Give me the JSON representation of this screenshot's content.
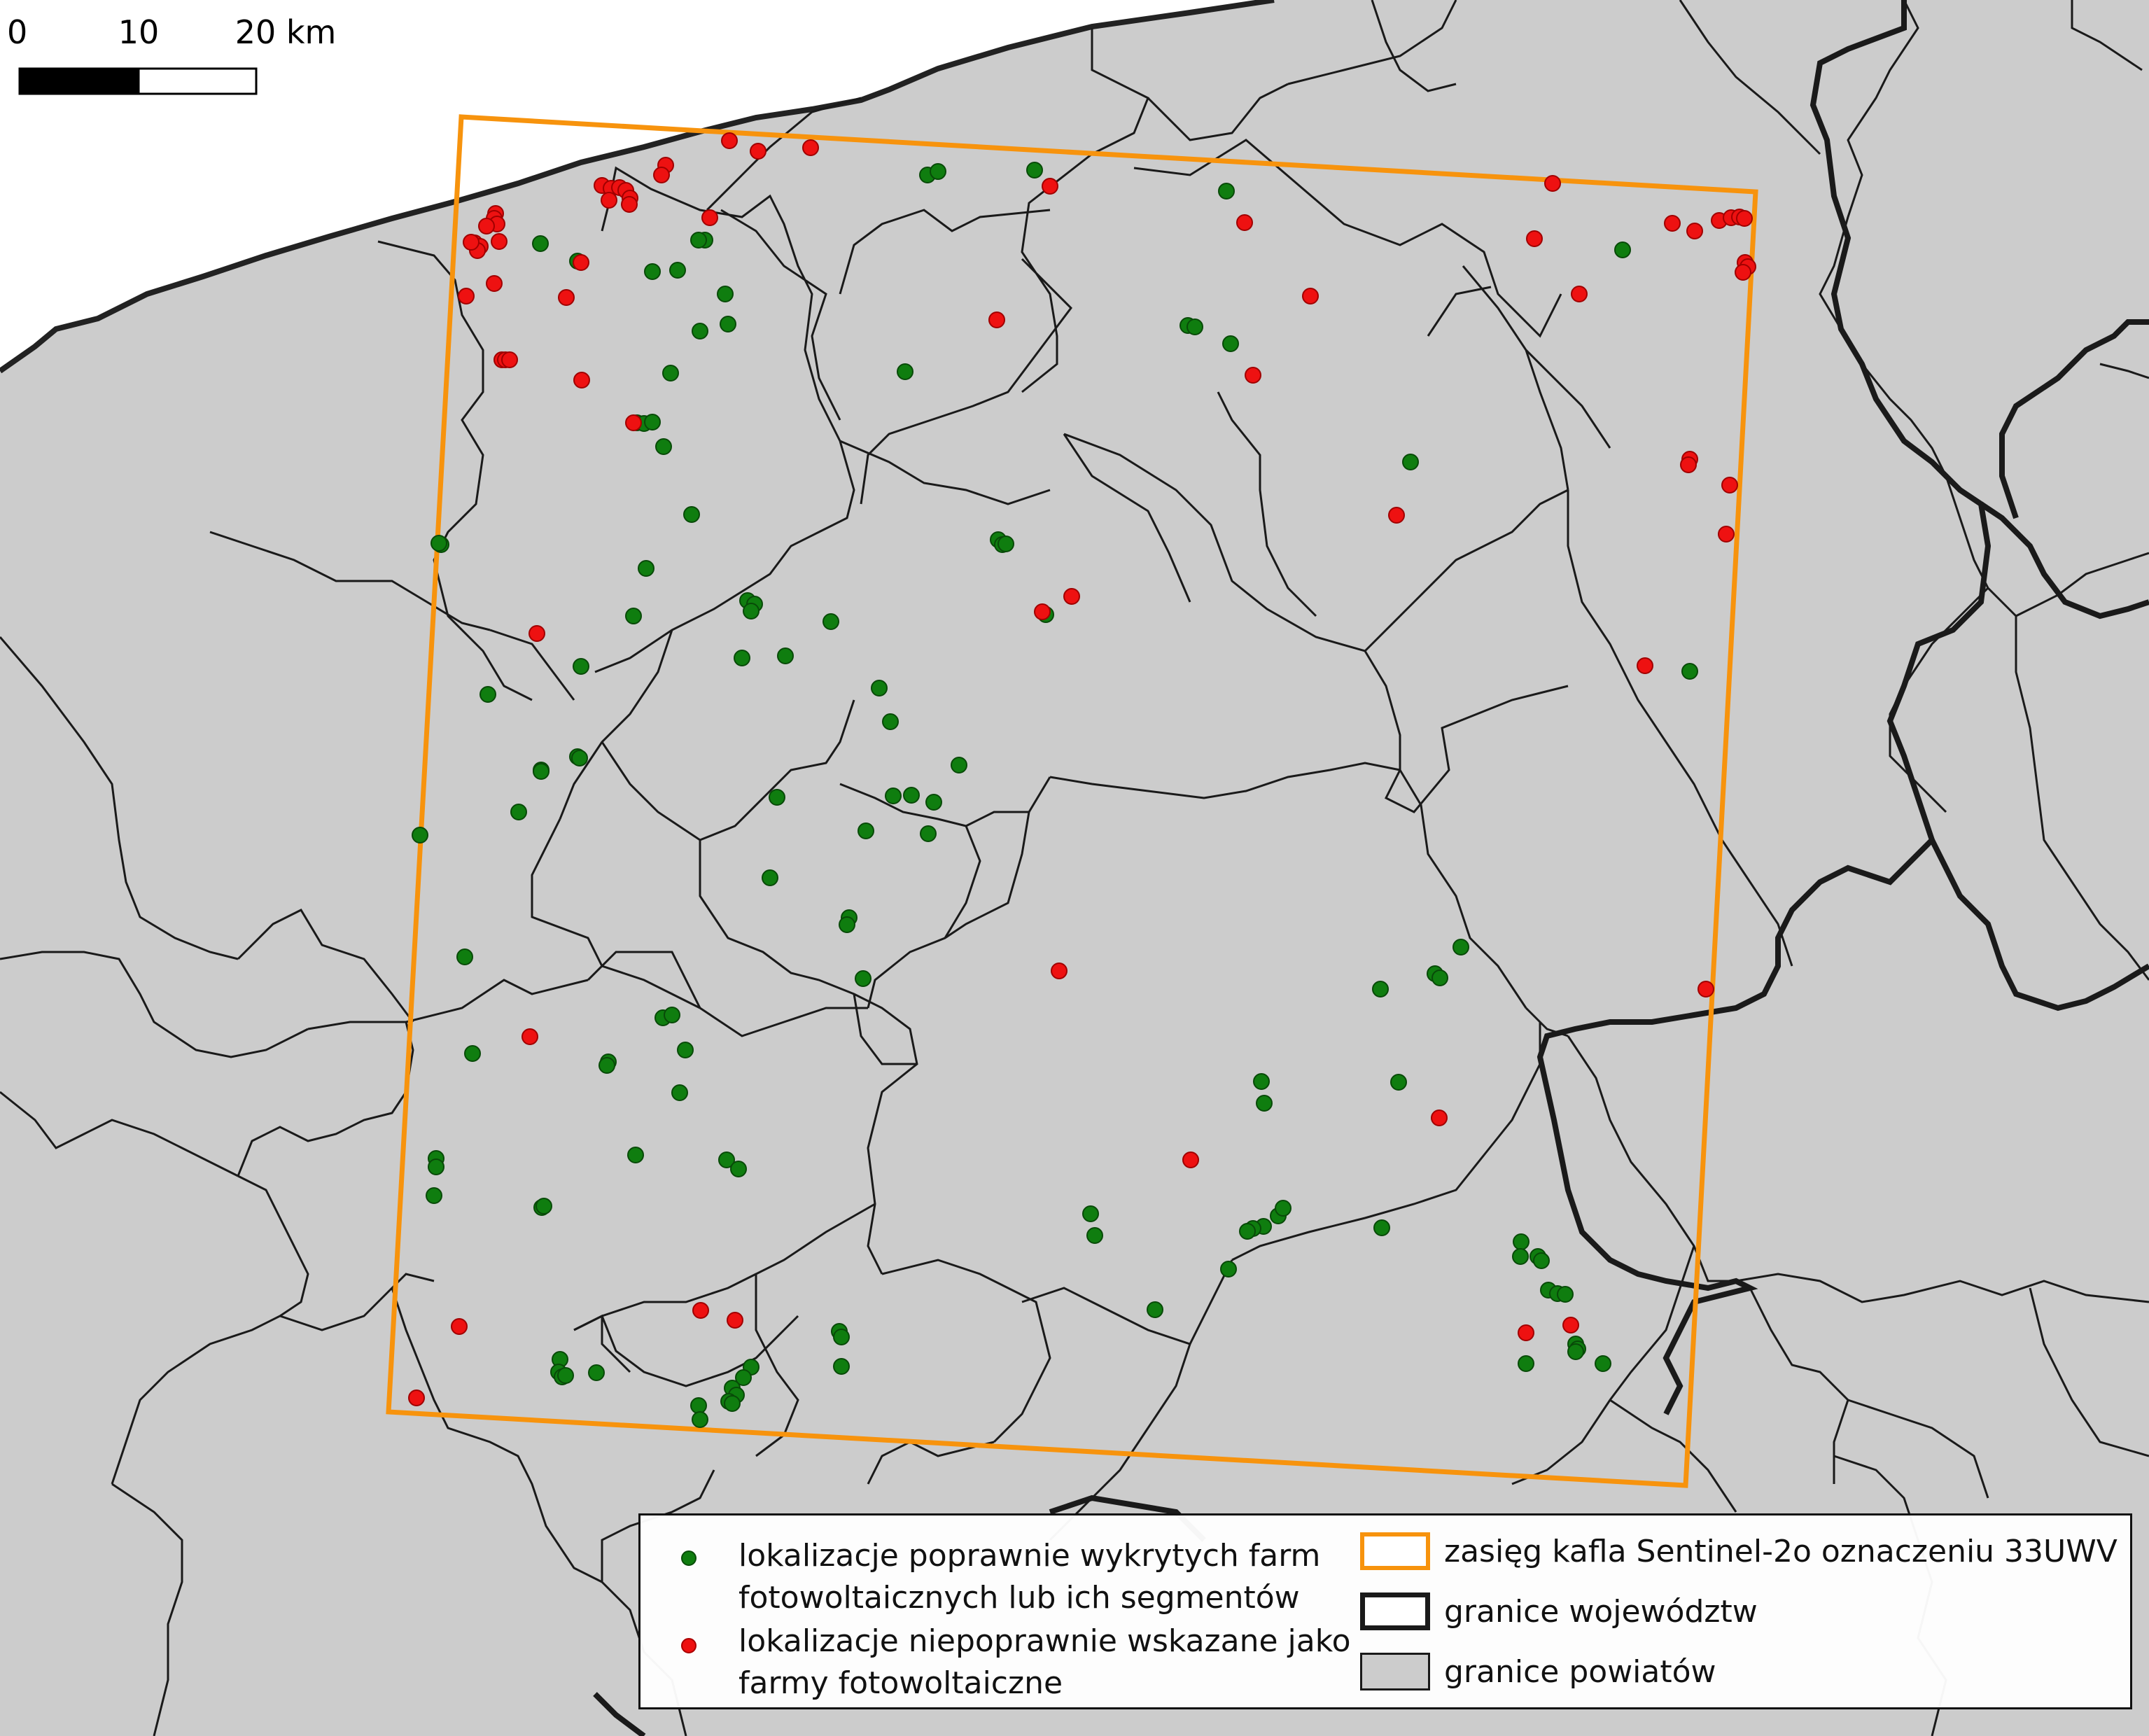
{
  "scale_bar": {
    "labels": [
      "0",
      "10",
      "20 km"
    ]
  },
  "colors": {
    "land": "#cccccc",
    "sea": "#ffffff",
    "county_border": "#1a1a1a",
    "voivodeship_border": "#1a1a1a",
    "tile_extent": "#f7930d",
    "correct": "#0f7d0f",
    "incorrect": "#ee1111"
  },
  "legend": {
    "correct_line1": "lokalizacje poprawnie wykrytych farm",
    "correct_line2": "fotowoltaicznych lub ich segmentów",
    "incorrect_line1": "lokalizacje niepoprawnie wskazane jako",
    "incorrect_line2": "farmy fotowoltaiczne",
    "tile_label": "zasięg kafla Sentinel-2o oznaczeniu 33UWV",
    "voivodeship_label": "granice województw",
    "county_label": "granice powiatów"
  },
  "icons": {
    "correct_point": "green-circle",
    "incorrect_point": "red-circle",
    "tile_extent": "orange-rectangle",
    "voivodeship": "thick-black-rectangle",
    "county": "grey-filled-rectangle"
  }
}
